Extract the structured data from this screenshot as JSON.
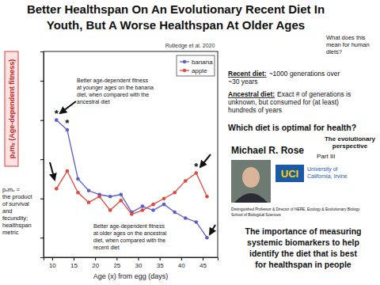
{
  "chart_data": {
    "type": "line",
    "title": [
      "Better Healthspan On An Evolutionary Recent Diet In",
      "Youth, But A Worse Healthspan At Older Ages"
    ],
    "source": "Rutledge et al. 2020",
    "x_label": "Age (x) from egg (days)",
    "y_label": "pₓmₓ (Age-dependent fitness)",
    "x": [
      11,
      13.5,
      16,
      18.5,
      21,
      23.5,
      26,
      28.5,
      31,
      33.5,
      36,
      38.5,
      41,
      43.5,
      46
    ],
    "series": [
      {
        "name": "banana",
        "color": "#5b5fc7",
        "marker": "circle",
        "line_style": "solid",
        "values": [
          8.0,
          7.5,
          5.0,
          4.4,
          4.2,
          4.1,
          4.2,
          3.3,
          3.6,
          3.4,
          3.7,
          3.3,
          3.0,
          2.8,
          2.0
        ]
      },
      {
        "name": "apple",
        "color": "#e0483e",
        "marker": "circle",
        "line_style": "solid",
        "values": [
          4.5,
          5.4,
          4.3,
          3.8,
          4.1,
          3.4,
          3.9,
          3.2,
          3.4,
          3.7,
          4.0,
          4.3,
          4.9,
          5.3,
          4.1
        ]
      }
    ],
    "xlim": [
      8,
      48.5
    ],
    "ylim": [
      1,
      11.5
    ],
    "xticks": [
      10,
      15,
      20,
      25,
      30,
      35,
      40,
      45
    ],
    "yticks": [
      2,
      4,
      6,
      8,
      10
    ],
    "tick_labels": "x",
    "grid": false,
    "legend": "top-right",
    "annotations": [
      {
        "text": "*",
        "x": 11,
        "y": 8.0
      },
      {
        "text": "*",
        "x": 13.5,
        "y": 7.5
      },
      {
        "text": "*",
        "x": 43.5,
        "y": 5.3
      },
      {
        "text": [
          "Better age-dependent fitness",
          "at younger ages on the banana",
          "diet, when compared with the",
          "ancestral diet"
        ]
      },
      {
        "text": [
          "Better age-dependent fitness",
          "at older ages on the ancestral",
          "diet, when compared with the",
          "recent diet"
        ]
      }
    ]
  },
  "slide": {
    "question": [
      "What does this",
      "mean for human",
      "diets?"
    ],
    "left_note": [
      "pₓmₓ =",
      "the product",
      "of survival",
      "and",
      "fecundity;",
      "healthspan",
      "metric"
    ],
    "recent_diet": {
      "label": "Recent diet:",
      "lines": [
        "~1000 generations over",
        "~30 years"
      ]
    },
    "ancestral_diet": {
      "label": "Ancestral diet:",
      "lines": [
        "Exact # of generations is",
        "unknown, but consumed for (at least)",
        "hundreds of years"
      ]
    },
    "question_main": "Which diet is optimal for health?",
    "subtitle": [
      "The evolutionary",
      "perspective"
    ],
    "speaker": "Michael R. Rose",
    "part": "Part III",
    "logo": "UCI",
    "institution": [
      "University of",
      "California, Irvine"
    ],
    "affiliation": [
      "Distinguished Professor & Director of NERE, Ecology & Evolutionary Biology",
      "School of Biological Sciences"
    ],
    "takeaway": [
      "The importance of measuring",
      "systemic biomarkers to help",
      "identify the diet that is best",
      "for healthspan in people"
    ]
  }
}
